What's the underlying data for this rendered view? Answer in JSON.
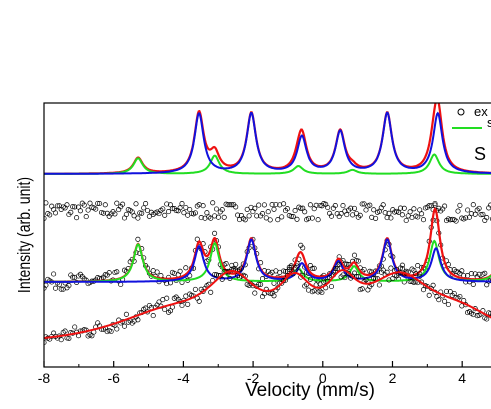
{
  "chart_data": {
    "type": "scatter",
    "title": "",
    "xlabel": "Velocity (mm/s)",
    "ylabel": "Intensity (arb. unit)",
    "xlim": [
      -8,
      5.2
    ],
    "xticks": [
      -8,
      -6,
      -4,
      -2,
      0,
      2,
      4
    ],
    "xtick_labels": [
      "-8",
      "-6",
      "-4",
      "-2",
      "0",
      "2",
      "4"
    ],
    "grid": false,
    "legend": {
      "placement": "top-right",
      "entries": [
        {
          "name": "ex",
          "marker": "open-circle",
          "color": "#000000"
        },
        {
          "name": "s",
          "marker": "line",
          "color": "#22dd22"
        }
      ]
    },
    "panel_label": "S",
    "colors": {
      "fit_total": "#ee1111",
      "component_green": "#22dd22",
      "component_blue": "#1111dd",
      "data_points": "#000000"
    },
    "spectra": [
      {
        "name": "",
        "baseline": 0,
        "data_points": false,
        "total_fit": true,
        "components": [
          {
            "color": "#22dd22",
            "peaks": [
              {
                "v": -5.3,
                "depth": 0.12
              },
              {
                "v": -3.1,
                "depth": 0.14
              },
              {
                "v": -0.7,
                "depth": 0.06
              },
              {
                "v": 0.85,
                "depth": 0.03
              },
              {
                "v": 3.2,
                "depth": 0.15
              }
            ]
          },
          {
            "color": "#1111dd",
            "peaks": [
              {
                "v": -3.55,
                "depth": 0.46
              },
              {
                "v": -2.05,
                "depth": 0.46
              },
              {
                "v": -0.6,
                "depth": 0.28
              },
              {
                "v": 0.5,
                "depth": 0.32
              },
              {
                "v": 1.85,
                "depth": 0.46
              },
              {
                "v": 3.3,
                "depth": 0.46
              }
            ]
          }
        ]
      },
      {
        "name": "",
        "baseline": 0,
        "data_points": true,
        "total_fit": false,
        "noise": 0.14,
        "components": []
      },
      {
        "name": "",
        "baseline": 0,
        "data_points": true,
        "total_fit": true,
        "noise": 0.07,
        "components": [
          {
            "color": "#22dd22",
            "peaks": [
              {
                "v": -5.3,
                "depth": 0.34
              },
              {
                "v": -3.1,
                "depth": 0.35
              },
              {
                "v": -0.7,
                "depth": 0.12
              },
              {
                "v": 0.9,
                "depth": 0.14
              },
              {
                "v": 3.2,
                "depth": 0.37
              },
              {
                "v": 5.1,
                "depth": 0.2
              }
            ]
          },
          {
            "color": "#1111dd",
            "peaks": [
              {
                "v": -3.55,
                "depth": 0.32
              },
              {
                "v": -2.05,
                "depth": 0.38
              },
              {
                "v": -0.6,
                "depth": 0.16
              },
              {
                "v": 0.45,
                "depth": 0.18
              },
              {
                "v": 1.85,
                "depth": 0.38
              },
              {
                "v": 3.25,
                "depth": 0.3
              }
            ]
          }
        ]
      },
      {
        "name": "",
        "baseline": 0,
        "data_points": true,
        "total_fit": true,
        "noise": 0.08,
        "components": [
          {
            "color": "#ee1111",
            "broad": true,
            "peaks": [
              {
                "v": -4.5,
                "depth": 0.3,
                "w": 2.0
              },
              {
                "v": -2.6,
                "depth": 0.55,
                "w": 0.9
              },
              {
                "v": -0.8,
                "depth": 0.45,
                "w": 0.6
              },
              {
                "v": 0.55,
                "depth": 0.42,
                "w": 0.55
              },
              {
                "v": 2.2,
                "depth": 0.6,
                "w": 1.2
              },
              {
                "v": 4.0,
                "depth": 0.25,
                "w": 1.4
              }
            ]
          }
        ]
      }
    ]
  }
}
